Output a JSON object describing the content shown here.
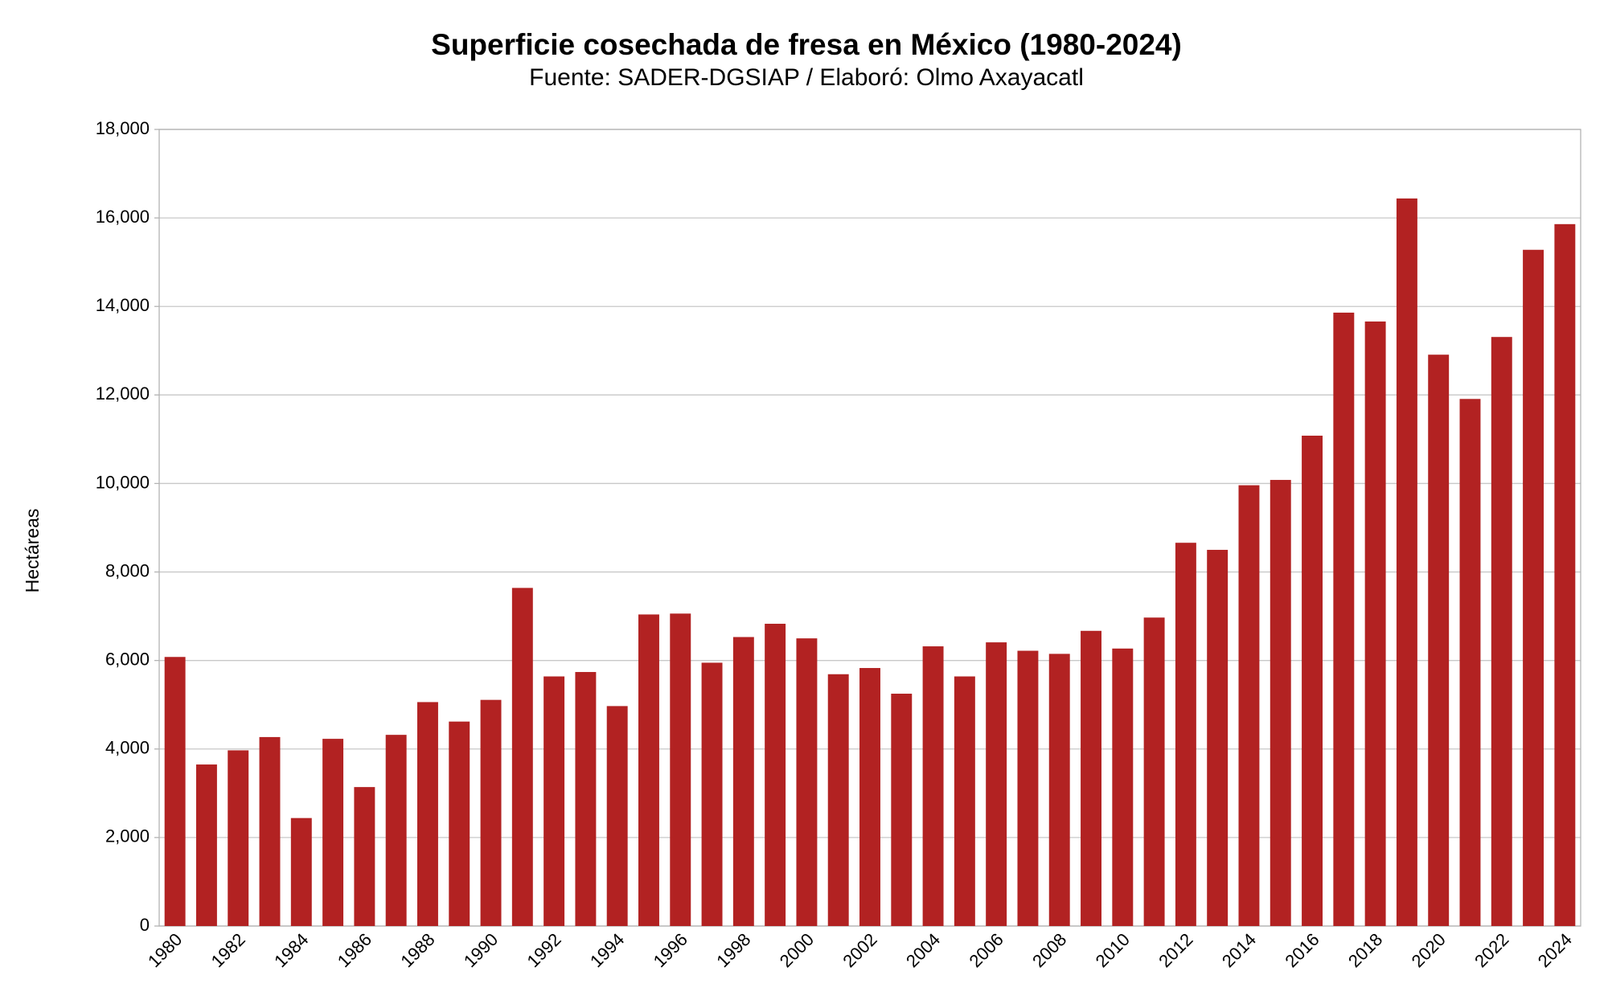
{
  "chart_data": {
    "type": "bar",
    "title": "Superficie cosechada de fresa en México (1980-2024)",
    "subtitle": "Fuente: SADER-DGSIAP / Elaboró: Olmo Axayacatl",
    "y_label": "Hectáreas",
    "categories": [
      "1980",
      null,
      "1982",
      null,
      "1984",
      null,
      "1986",
      null,
      "1988",
      null,
      "1990",
      null,
      "1992",
      null,
      "1994",
      null,
      "1996",
      null,
      "1998",
      null,
      "2000",
      null,
      "2002",
      null,
      "2004",
      null,
      "2006",
      null,
      "2008",
      null,
      "2010",
      null,
      "2012",
      null,
      "2014",
      null,
      "2016",
      null,
      "2018",
      null,
      "2020",
      null,
      "2022",
      null,
      "2024"
    ],
    "values": [
      6080,
      3650,
      3970,
      4270,
      2440,
      4230,
      3140,
      4320,
      5060,
      4620,
      5110,
      7640,
      5640,
      5740,
      4970,
      7040,
      7060,
      5950,
      6530,
      6830,
      6500,
      5690,
      5830,
      5250,
      6320,
      5640,
      6410,
      6220,
      6150,
      6670,
      6270,
      6970,
      8660,
      8500,
      9960,
      10080,
      11080,
      13860,
      13660,
      16440,
      12910,
      11910,
      13310,
      15280,
      15860
    ],
    "color": "#b22222",
    "ylim": [
      0,
      18000
    ],
    "yticks": [
      0,
      {
        "value": 2000,
        "label": "2,000"
      },
      {
        "value": 4000,
        "label": "4,000"
      },
      {
        "value": 6000,
        "label": "6,000"
      },
      {
        "value": 8000,
        "label": "8,000"
      },
      {
        "value": 10000,
        "label": "10,000"
      },
      {
        "value": 12000,
        "label": "12,000"
      },
      {
        "value": 14000,
        "label": "14,000"
      },
      {
        "value": 16000,
        "label": "16,000"
      },
      {
        "value": 18000,
        "label": "18,000"
      }
    ],
    "grid": true
  }
}
